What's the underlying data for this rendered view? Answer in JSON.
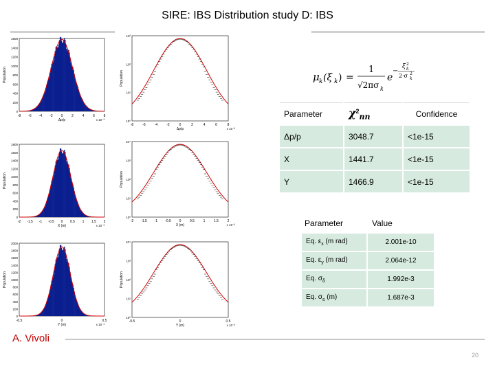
{
  "title": "SIRE: IBS Distribution study D: IBS",
  "author": "A. Vivoli",
  "page_number": "20",
  "formula": {
    "lhs": "μ",
    "sub": "k",
    "arg": "(ξ",
    "arg_sub": "k",
    "arg_close": ")",
    "equals": "=",
    "num": "1",
    "den": "√2πσ",
    "den_sub": "k",
    "exp_base": "e",
    "exp_num": "ξ",
    "exp_num_sup": "2",
    "exp_num_sub": "k",
    "exp_den": "2·σ",
    "exp_den_sup": "2",
    "exp_den_sub": "k",
    "minus": "−"
  },
  "fit_table": {
    "headers": [
      "Parameter",
      "χ",
      "Confidence"
    ],
    "chi_sup": "2",
    "chi_sub": "nn",
    "rows": [
      {
        "param": "Δp/p",
        "chi2": "3048.7",
        "confidence": "<1e-15"
      },
      {
        "param": "X",
        "chi2": "1441.7",
        "confidence": "<1e-15"
      },
      {
        "param": "Y",
        "chi2": "1466.9",
        "confidence": "<1e-15"
      }
    ]
  },
  "emittance_table": {
    "headers": [
      "Parameter",
      "Value"
    ],
    "rows": [
      {
        "label": "Eq. ε",
        "sub": "x",
        "unit": " (m rad)",
        "value": "2.001e-10"
      },
      {
        "label": "Eq. ε",
        "sub": "y",
        "unit": " (m rad)",
        "value": "2.064e-12"
      },
      {
        "label": "Eq. σ",
        "sub": "δ",
        "unit": "",
        "value": "1.992e-3"
      },
      {
        "label": "Eq. σ",
        "sub": "s",
        "unit": " (m)",
        "value": "1.687e-3"
      }
    ]
  },
  "chart_data": [
    {
      "type": "bar",
      "xlabel": "Δp/p",
      "ylabel": "Population",
      "xlim": [
        -8,
        8
      ],
      "ylim": [
        0,
        1600
      ],
      "x_ticks": [
        "-8",
        "-6",
        "-4",
        "-2",
        "0",
        "2",
        "4",
        "6",
        "8"
      ],
      "y_ticks": [
        "0",
        "200",
        "400",
        "600",
        "800",
        "1000",
        "1200",
        "1400",
        "1600"
      ],
      "x_exponent": "x 10⁻³",
      "sigma": 2.0,
      "peak": 1580,
      "fit": "gaussian"
    },
    {
      "type": "line",
      "xlabel": "Δp/p",
      "ylabel": "Population",
      "scale": "log",
      "xlim": [
        -8,
        8
      ],
      "x_ticks": [
        "-8",
        "-6",
        "-4",
        "-2",
        "0",
        "2",
        "4",
        "6",
        "8"
      ],
      "y_ticks": [
        "10⁰",
        "10¹",
        "10²",
        "10³"
      ],
      "x_exponent": "x 10⁻³",
      "fit": "gaussian"
    },
    {
      "type": "bar",
      "xlabel": "X (m)",
      "ylabel": "Population",
      "xlim": [
        -2,
        2
      ],
      "ylim": [
        0,
        1800
      ],
      "x_ticks": [
        "-2",
        "-1.5",
        "-1",
        "-0.5",
        "0",
        "0.5",
        "1",
        "1.5",
        "2"
      ],
      "y_ticks": [
        "0",
        "200",
        "400",
        "600",
        "800",
        "1000",
        "1200",
        "1400",
        "1600",
        "1800"
      ],
      "x_exponent": "x 10⁻³",
      "sigma": 0.42,
      "peak": 1650,
      "fit": "gaussian"
    },
    {
      "type": "line",
      "xlabel": "X (m)",
      "ylabel": "Population",
      "scale": "log",
      "xlim": [
        -2,
        2
      ],
      "x_ticks": [
        "-2",
        "-1.5",
        "-1",
        "-0.5",
        "0",
        "0.5",
        "1",
        "1.5",
        "2"
      ],
      "y_ticks": [
        "10⁰",
        "10¹",
        "10²",
        "10³",
        "10⁴"
      ],
      "x_exponent": "x 10⁻³",
      "fit": "gaussian"
    },
    {
      "type": "bar",
      "xlabel": "Y (m)",
      "ylabel": "Population",
      "xlim": [
        -0.5,
        0.5
      ],
      "ylim": [
        0,
        2000
      ],
      "x_ticks": [
        "-0.5",
        "0",
        "0.5"
      ],
      "y_ticks": [
        "0",
        "200",
        "400",
        "600",
        "800",
        "1000",
        "1200",
        "1400",
        "1600",
        "1800",
        "2000"
      ],
      "x_exponent": "x 10⁻³",
      "sigma": 0.1,
      "peak": 1900,
      "fit": "gaussian"
    },
    {
      "type": "line",
      "xlabel": "Y (m)",
      "ylabel": "Population",
      "scale": "log",
      "xlim": [
        -0.5,
        0.5
      ],
      "x_ticks": [
        "-0.5",
        "0",
        "0.5"
      ],
      "y_ticks": [
        "10⁰",
        "10¹",
        "10²",
        "10³",
        "10⁴"
      ],
      "x_exponent": "x 10⁻³",
      "fit": "gaussian"
    }
  ]
}
